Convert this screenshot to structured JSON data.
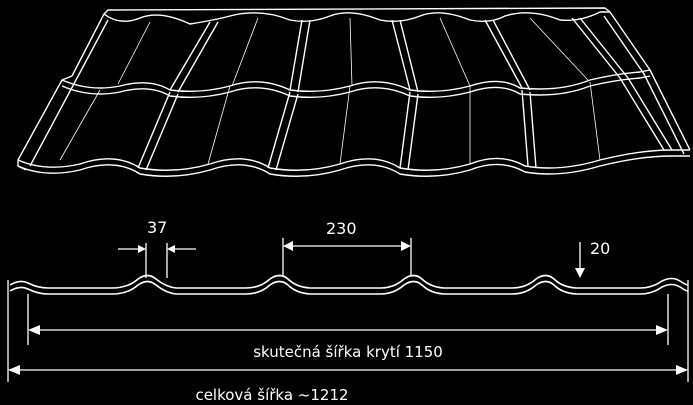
{
  "colors": {
    "background": "#000000",
    "line": "#ffffff"
  },
  "drawing": {
    "roof_illustration": "3d metal roof tile sheet",
    "dimensions": {
      "wave_width": "37",
      "module_pitch": "230",
      "profile_height": "20"
    },
    "effective_width_label": "skutečná šířka krytí 1150",
    "total_width_label": "celková šířka ~1212"
  }
}
